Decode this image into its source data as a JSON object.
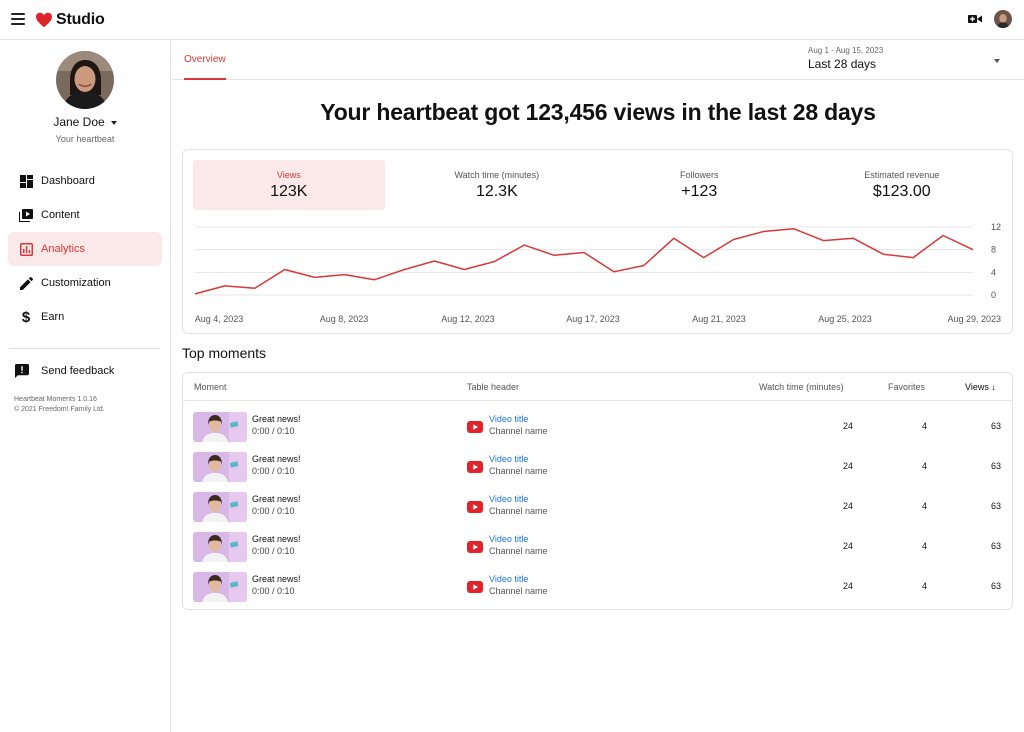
{
  "app": {
    "name": "Studio"
  },
  "user": {
    "name": "Jane Doe",
    "subtitle": "Your heartbeat"
  },
  "sidebar": {
    "items": [
      {
        "label": "Dashboard",
        "icon": "dashboard-icon",
        "active": false
      },
      {
        "label": "Content",
        "icon": "content-icon",
        "active": false
      },
      {
        "label": "Analytics",
        "icon": "analytics-icon",
        "active": true
      },
      {
        "label": "Customization",
        "icon": "pencil-icon",
        "active": false
      },
      {
        "label": "Earn",
        "icon": "dollar-icon",
        "active": false
      }
    ],
    "feedback_label": "Send feedback",
    "version": "Heartbeat Moments 1.0.16",
    "copyright": "© 2021 Freedom! Family Ltd."
  },
  "tabs": {
    "overview": "Overview"
  },
  "date_picker": {
    "range": "Aug 1 - Aug 15, 2023",
    "label": "Last 28 days"
  },
  "headline": "Your heartbeat got 123,456 views in the last 28 days",
  "metrics": [
    {
      "label": "Views",
      "value": "123K",
      "active": true
    },
    {
      "label": "Watch time (minutes)",
      "value": "12.3K",
      "active": false
    },
    {
      "label": "Followers",
      "value": "+123",
      "active": false
    },
    {
      "label": "Estimated revenue",
      "value": "$123.00",
      "active": false
    }
  ],
  "chart_data": {
    "type": "line",
    "series": [
      {
        "values": [
          0.2,
          1.6,
          1.2,
          4.5,
          3.1,
          3.6,
          2.7,
          4.5,
          6.0,
          4.5,
          5.9,
          8.8,
          7.0,
          7.5,
          4.1,
          5.2,
          10.0,
          6.6,
          9.8,
          11.2,
          11.7,
          9.6,
          10.0,
          7.2,
          6.6,
          10.5,
          8.0
        ]
      }
    ],
    "x_tick_labels": [
      "Aug 4, 2023",
      "Aug 8, 2023",
      "Aug 12, 2023",
      "Aug 17, 2023",
      "Aug 21, 2023",
      "Aug 25, 2023",
      "Aug 29, 2023"
    ],
    "y_ticks": [
      0,
      4,
      8,
      12
    ],
    "ylim": [
      0,
      12
    ],
    "grid": true,
    "color": "#d93838"
  },
  "top_moments": {
    "title": "Top moments",
    "headers": {
      "moment": "Moment",
      "table_header": "Table header",
      "watch_time": "Watch time (minutes)",
      "favorites": "Favorites",
      "views": "Views ↓"
    },
    "rows": [
      {
        "title": "Great news!",
        "time": "0:00 / 0:10",
        "video_title": "Video title",
        "channel": "Channel name",
        "watch_time": "24",
        "favorites": "4",
        "views": "63"
      },
      {
        "title": "Great news!",
        "time": "0:00 / 0:10",
        "video_title": "Video title",
        "channel": "Channel name",
        "watch_time": "24",
        "favorites": "4",
        "views": "63"
      },
      {
        "title": "Great news!",
        "time": "0:00 / 0:10",
        "video_title": "Video title",
        "channel": "Channel name",
        "watch_time": "24",
        "favorites": "4",
        "views": "63"
      },
      {
        "title": "Great news!",
        "time": "0:00 / 0:10",
        "video_title": "Video title",
        "channel": "Channel name",
        "watch_time": "24",
        "favorites": "4",
        "views": "63"
      },
      {
        "title": "Great news!",
        "time": "0:00 / 0:10",
        "video_title": "Video title",
        "channel": "Channel name",
        "watch_time": "24",
        "favorites": "4",
        "views": "63"
      }
    ]
  },
  "colors": {
    "accent": "#d93838",
    "accent_bg": "#fbe9e9",
    "link": "#1a73e8"
  }
}
